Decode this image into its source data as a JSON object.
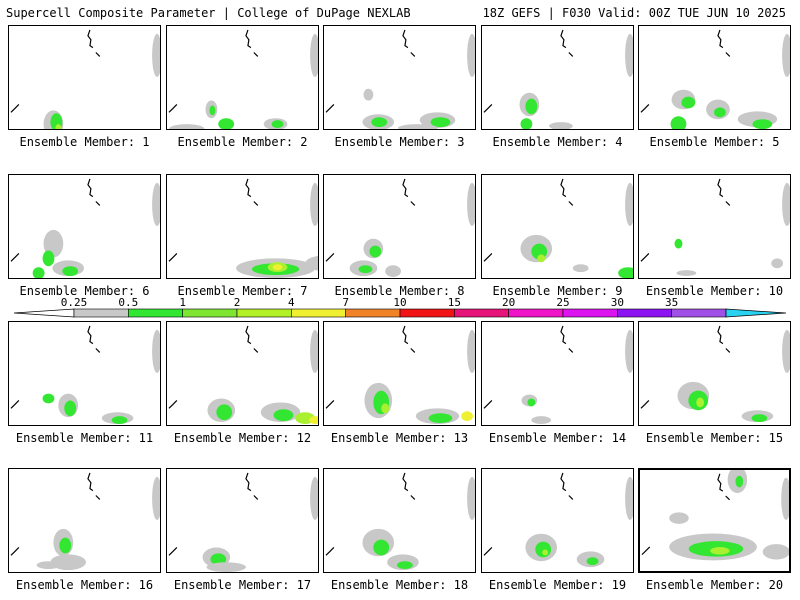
{
  "header": {
    "title_left": "Supercell Composite Parameter | College of DuPage NEXLAB",
    "title_right": "18Z GEFS | F030 Valid: 00Z TUE JUN 10 2025"
  },
  "label_prefix": "Ensemble Member: ",
  "members": [
    1,
    2,
    3,
    4,
    5,
    6,
    7,
    8,
    9,
    10,
    11,
    12,
    13,
    14,
    15,
    16,
    17,
    18,
    19,
    20
  ],
  "highlighted_member": 20,
  "legend": {
    "ticks": [
      "0.25",
      "0.5",
      "1",
      "2",
      "4",
      "7",
      "10",
      "15",
      "20",
      "25",
      "30",
      "35"
    ],
    "colors": [
      "#c8c8c8",
      "#32e632",
      "#7ee632",
      "#b4f028",
      "#f0f032",
      "#f08228",
      "#f01414",
      "#e61478",
      "#f014c8",
      "#dc14f0",
      "#8c14f0",
      "#a050e6",
      "#28d2f0"
    ]
  },
  "palette": {
    "gray": "#c8c8c8",
    "green": "#32e632",
    "lime": "#a8f030",
    "yellow": "#f0f032",
    "orange": "#f08228"
  }
}
